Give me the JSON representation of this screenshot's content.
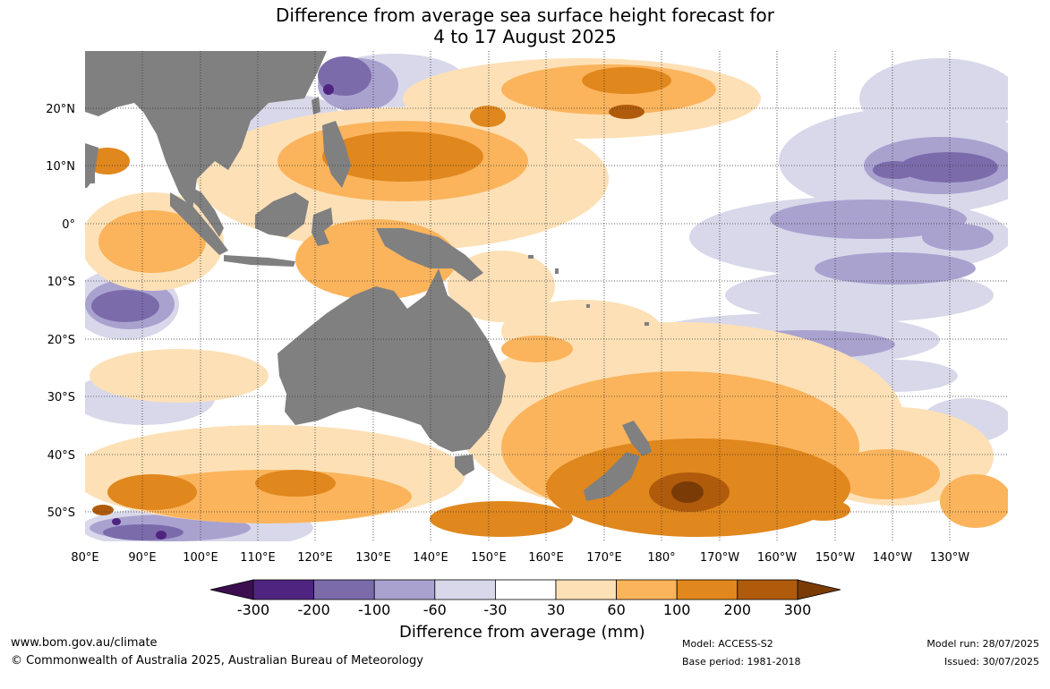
{
  "title_line1": "Difference from average sea surface height forecast for",
  "title_line2": "4 to 17 August 2025",
  "lat_labels": [
    "20°N",
    "10°N",
    "0°",
    "10°S",
    "20°S",
    "30°S",
    "40°S",
    "50°S"
  ],
  "lon_labels": [
    "80°E",
    "90°E",
    "100°E",
    "110°E",
    "120°E",
    "130°E",
    "140°E",
    "150°E",
    "160°E",
    "170°E",
    "180°",
    "170°W",
    "160°W",
    "150°W",
    "140°W",
    "130°W"
  ],
  "colorbar": {
    "labels": [
      "-300",
      "-200",
      "-100",
      "-60",
      "-30",
      "30",
      "60",
      "100",
      "200",
      "300"
    ],
    "title": "Difference from average (mm)",
    "colors": [
      "#3b0f4f",
      "#4f2481",
      "#7b6bab",
      "#a9a2cf",
      "#d8d8ea",
      "#ffffff",
      "#fde0b6",
      "#fbb45c",
      "#e0871d",
      "#b05b0c",
      "#7a3b07"
    ]
  },
  "land_color": "#808080",
  "footer": {
    "url": "www.bom.gov.au/climate",
    "copyright": "© Commonwealth of Australia 2025, Australian Bureau of Meteorology",
    "model": "Model: ACCESS-S2",
    "base_period": "Base period: 1981-2018",
    "model_run": "Model run: 28/07/2025",
    "issued": "Issued: 30/07/2025"
  }
}
